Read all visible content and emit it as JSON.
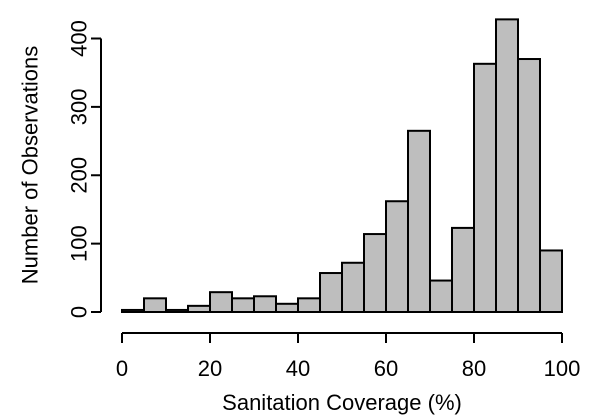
{
  "chart_data": {
    "type": "bar",
    "histogram": true,
    "title": "",
    "xlabel": "Sanitation Coverage (%)",
    "ylabel": "Number of Observations",
    "xlim": [
      0,
      100
    ],
    "ylim": [
      0,
      430
    ],
    "xticks": [
      0,
      20,
      40,
      60,
      80,
      100
    ],
    "yticks": [
      0,
      100,
      200,
      300,
      400
    ],
    "bin_edges": [
      0,
      5,
      10,
      15,
      20,
      25,
      30,
      35,
      40,
      45,
      50,
      55,
      60,
      65,
      70,
      75,
      80,
      85,
      90,
      95,
      100
    ],
    "values": [
      3,
      20,
      3,
      9,
      29,
      20,
      23,
      12,
      20,
      57,
      72,
      114,
      162,
      265,
      46,
      123,
      363,
      428,
      370,
      90
    ],
    "bar_fill": "#bebebe",
    "bar_stroke": "#000000",
    "grid": false,
    "legend": "none"
  }
}
